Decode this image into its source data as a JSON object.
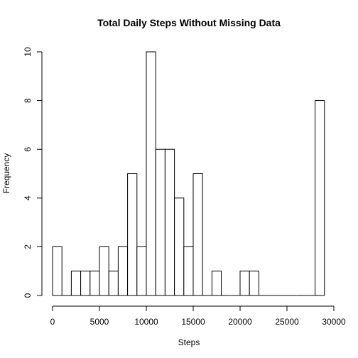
{
  "chart_data": {
    "type": "bar",
    "title": "Total Daily Steps Without Missing Data",
    "xlabel": "Steps",
    "ylabel": "Frequency",
    "bin_width": 1000,
    "bins": [
      {
        "start": 0,
        "end": 1000,
        "count": 2
      },
      {
        "start": 1000,
        "end": 2000,
        "count": 0
      },
      {
        "start": 2000,
        "end": 3000,
        "count": 1
      },
      {
        "start": 3000,
        "end": 4000,
        "count": 1
      },
      {
        "start": 4000,
        "end": 5000,
        "count": 1
      },
      {
        "start": 5000,
        "end": 6000,
        "count": 2
      },
      {
        "start": 6000,
        "end": 7000,
        "count": 1
      },
      {
        "start": 7000,
        "end": 8000,
        "count": 2
      },
      {
        "start": 8000,
        "end": 9000,
        "count": 5
      },
      {
        "start": 9000,
        "end": 10000,
        "count": 2
      },
      {
        "start": 10000,
        "end": 11000,
        "count": 10
      },
      {
        "start": 11000,
        "end": 12000,
        "count": 6
      },
      {
        "start": 12000,
        "end": 13000,
        "count": 6
      },
      {
        "start": 13000,
        "end": 14000,
        "count": 4
      },
      {
        "start": 14000,
        "end": 15000,
        "count": 2
      },
      {
        "start": 15000,
        "end": 16000,
        "count": 5
      },
      {
        "start": 16000,
        "end": 17000,
        "count": 0
      },
      {
        "start": 17000,
        "end": 18000,
        "count": 1
      },
      {
        "start": 18000,
        "end": 19000,
        "count": 0
      },
      {
        "start": 19000,
        "end": 20000,
        "count": 0
      },
      {
        "start": 20000,
        "end": 21000,
        "count": 1
      },
      {
        "start": 21000,
        "end": 22000,
        "count": 1
      },
      {
        "start": 22000,
        "end": 23000,
        "count": 0
      },
      {
        "start": 23000,
        "end": 24000,
        "count": 0
      },
      {
        "start": 24000,
        "end": 25000,
        "count": 0
      },
      {
        "start": 25000,
        "end": 26000,
        "count": 0
      },
      {
        "start": 26000,
        "end": 27000,
        "count": 0
      },
      {
        "start": 27000,
        "end": 28000,
        "count": 0
      },
      {
        "start": 28000,
        "end": 29000,
        "count": 8
      }
    ],
    "xlim": [
      0,
      30000
    ],
    "ylim": [
      0,
      10
    ],
    "x_ticks": [
      0,
      5000,
      10000,
      15000,
      20000,
      25000,
      30000
    ],
    "y_ticks": [
      0,
      2,
      4,
      6,
      8,
      10
    ],
    "grid": false,
    "legend": "none"
  }
}
